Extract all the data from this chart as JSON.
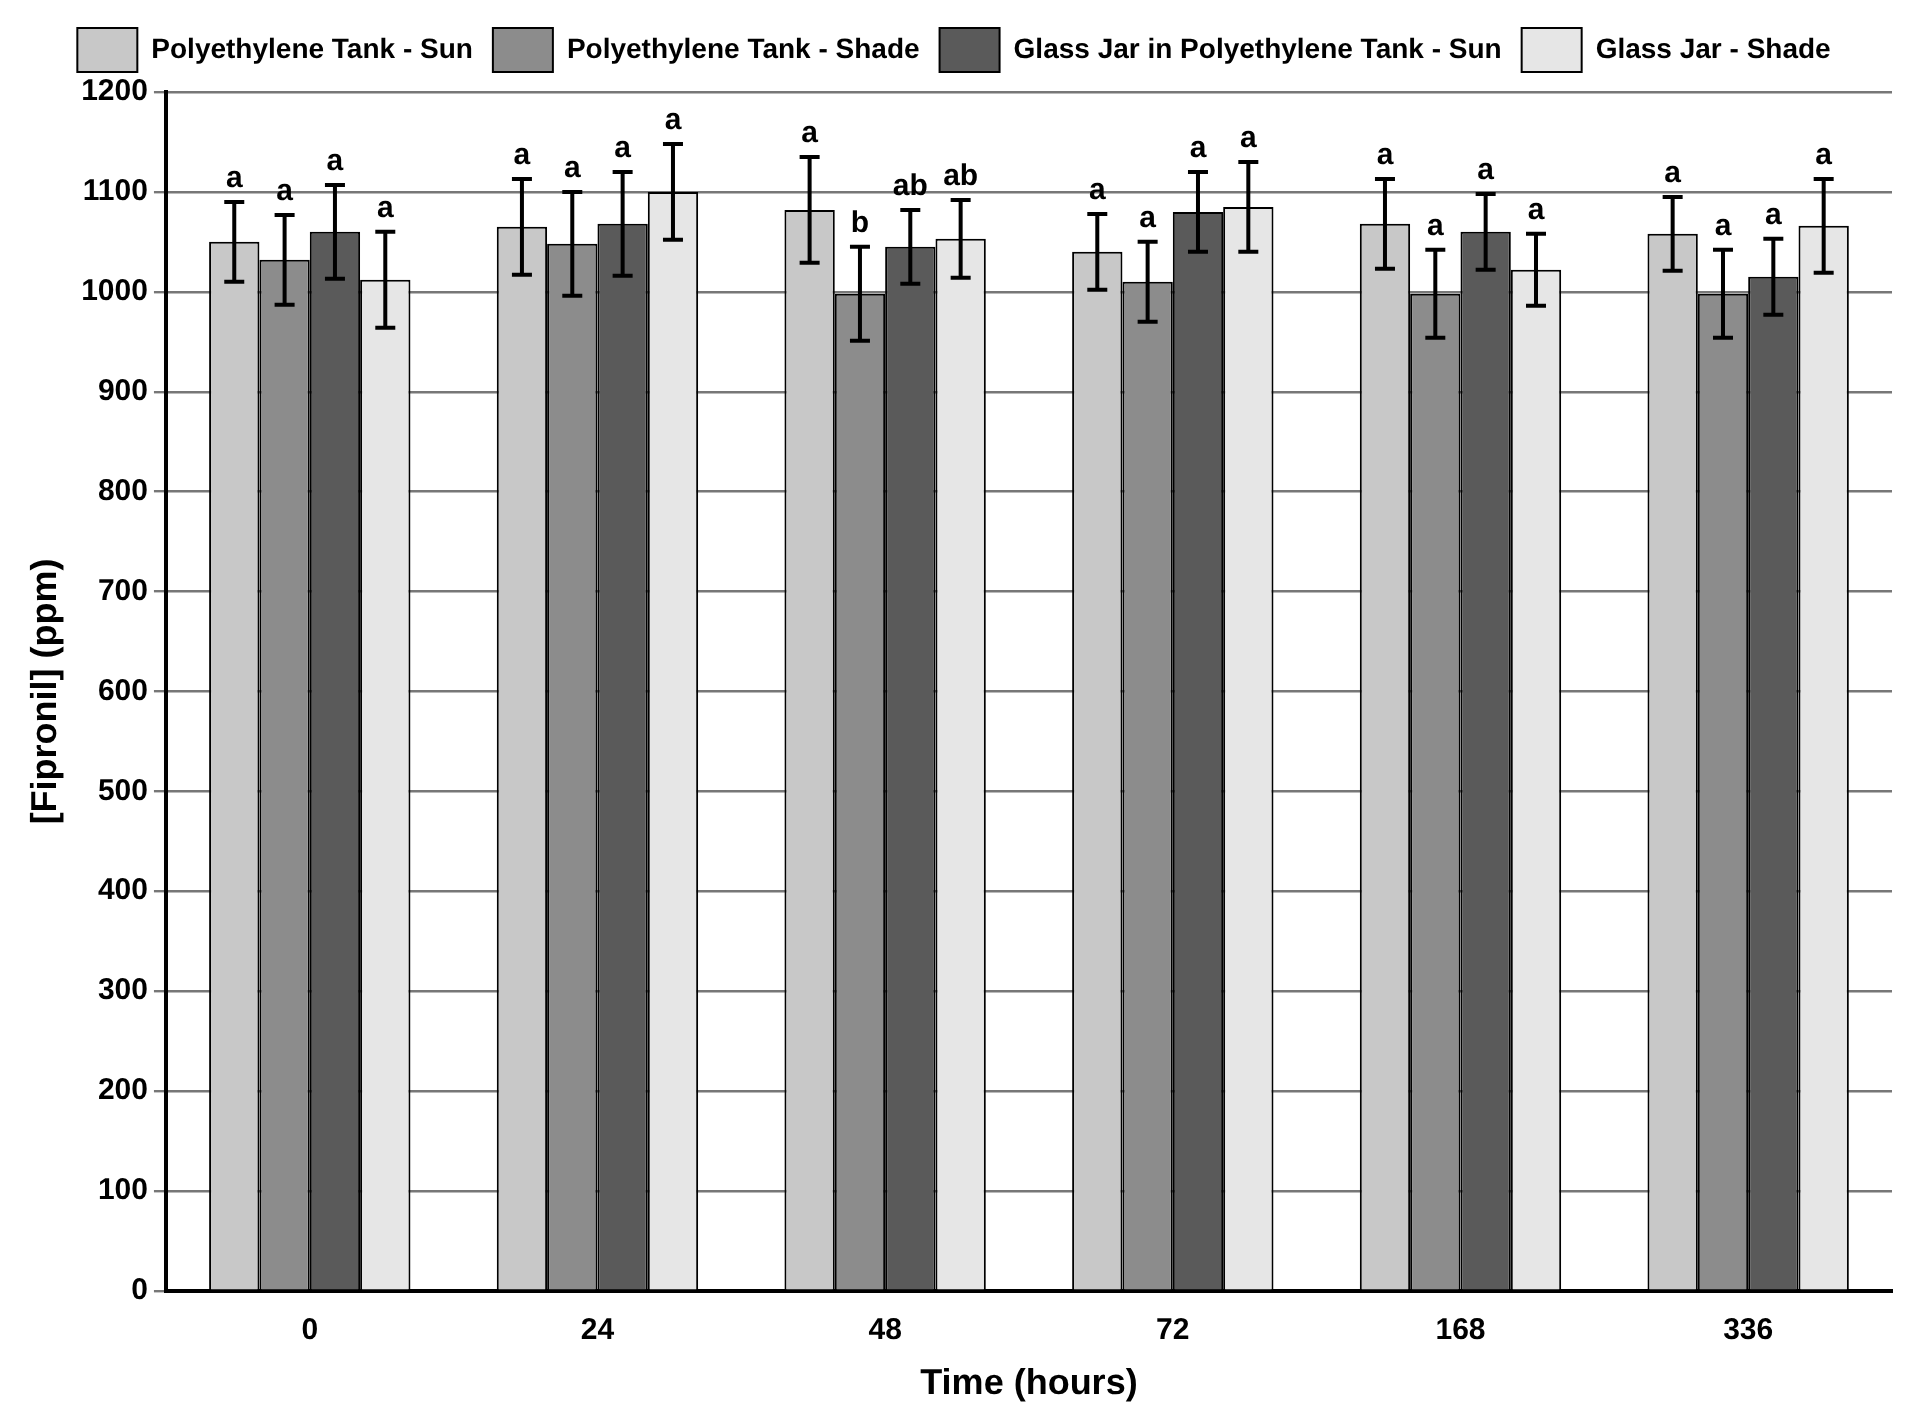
{
  "chart_data": {
    "type": "bar",
    "xlabel": "Time (hours)",
    "ylabel": "[Fipronil] (ppm)",
    "categories": [
      "0",
      "24",
      "48",
      "72",
      "168",
      "336"
    ],
    "series": [
      {
        "name": "Polyethylene Tank - Sun",
        "color": "#c8c8c8",
        "values": [
          1050,
          1065,
          1082,
          1040,
          1068,
          1058
        ],
        "errors": [
          40,
          48,
          53,
          38,
          45,
          37
        ],
        "value_labels": [
          "a",
          "a",
          "a",
          "a",
          "a",
          "a"
        ]
      },
      {
        "name": "Polyethylene Tank - Shade",
        "color": "#8c8c8c",
        "values": [
          1032,
          1048,
          998,
          1010,
          998,
          998
        ],
        "errors": [
          45,
          52,
          47,
          40,
          44,
          44
        ],
        "value_labels": [
          "a",
          "a",
          "b",
          "a",
          "a",
          "a"
        ]
      },
      {
        "name": "Glass Jar in Polyethylene Tank - Sun",
        "color": "#5a5a5a",
        "values": [
          1060,
          1068,
          1045,
          1080,
          1060,
          1015
        ],
        "errors": [
          47,
          52,
          37,
          40,
          38,
          38
        ],
        "value_labels": [
          "a",
          "a",
          "ab",
          "a",
          "a",
          "a"
        ]
      },
      {
        "name": "Glass Jar - Shade",
        "color": "#e6e6e6",
        "values": [
          1012,
          1100,
          1053,
          1085,
          1022,
          1066
        ],
        "errors": [
          48,
          48,
          39,
          45,
          36,
          47
        ],
        "value_labels": [
          "a",
          "a",
          "ab",
          "a",
          "a",
          "a"
        ]
      }
    ],
    "ylim": [
      0,
      1200
    ],
    "yticks": [
      0,
      100,
      200,
      300,
      400,
      500,
      600,
      700,
      800,
      900,
      1000,
      1100,
      1200
    ],
    "grid": "y",
    "legend": "top"
  }
}
